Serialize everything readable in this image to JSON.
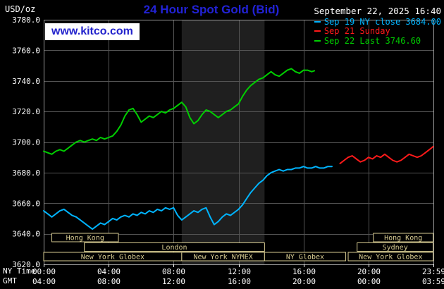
{
  "header": {
    "unit_label": "USD/oz",
    "title": "24 Hour Spot Gold (Bid)",
    "datetime": "September 22, 2025 16:40",
    "watermark": "www.kitco.com",
    "legend": [
      {
        "label": "Sep 19 NY close 3684.00",
        "color": "#00b4ff"
      },
      {
        "label": "Sep 21 Sunday",
        "color": "#ff1a1a"
      },
      {
        "label": "Sep 22 Last 3746.60",
        "color": "#00cf00"
      }
    ]
  },
  "axes": {
    "ny_time_label": "NY Time",
    "gmt_label": "GMT"
  },
  "colors": {
    "background": "#000000",
    "grid": "#555555",
    "frame": "#9a9a9a",
    "band": "#1f1f1f",
    "tick_text": "#ffffff",
    "session": "#d8cc92",
    "session_fill": "#000000",
    "title_blue": "#2222d6",
    "kitco_blue": "#2222cc"
  },
  "sessions": {
    "rows": [
      {
        "boxes": [
          {
            "label": "Hong Kong",
            "start": 0.5,
            "end": 4.6
          },
          {
            "label": "Hong Kong",
            "start": 20.3,
            "end": 23.983
          }
        ]
      },
      {
        "boxes": [
          {
            "label": "London",
            "start": 2.5,
            "end": 13.6
          },
          {
            "label": "Sydney",
            "start": 19.3,
            "end": 23.983
          }
        ]
      },
      {
        "boxes": [
          {
            "label": "New York Globex",
            "start": 0,
            "end": 8.5
          },
          {
            "label": "New York NYMEX",
            "start": 8.5,
            "end": 13.6
          },
          {
            "label": "NY Globex",
            "start": 13.6,
            "end": 18.6
          },
          {
            "label": "New York Globex",
            "start": 18.75,
            "end": 23.983
          }
        ]
      }
    ]
  },
  "chart_data": {
    "type": "line",
    "title": "24 Hour Spot Gold (Bid)",
    "xlabel": "NY Time (hours 00:00-23:59)",
    "ylabel": "USD/oz",
    "xlim": [
      0,
      24
    ],
    "ylim": [
      3620,
      3780
    ],
    "grid": true,
    "legend_position": "top-right",
    "session_highlight": {
      "name": "New York NYMEX",
      "start": 8.5,
      "end": 13.6
    },
    "x_ticks": [
      {
        "h": 0,
        "ny": "00:00",
        "gmt": "04:00"
      },
      {
        "h": 4,
        "ny": "04:00",
        "gmt": "08:00"
      },
      {
        "h": 8,
        "ny": "08:00",
        "gmt": "12:00"
      },
      {
        "h": 12,
        "ny": "12:00",
        "gmt": "16:00"
      },
      {
        "h": 16,
        "ny": "16:00",
        "gmt": "20:00"
      },
      {
        "h": 20,
        "ny": "20:00",
        "gmt": "00:00"
      },
      {
        "h": 23.983,
        "ny": "23:59",
        "gmt": "03:59"
      }
    ],
    "y_ticks": [
      {
        "v": 3780,
        "label": "3780.0"
      },
      {
        "v": 3760,
        "label": "3760.0"
      },
      {
        "v": 3740,
        "label": "3740.0"
      },
      {
        "v": 3720,
        "label": "3720.0"
      },
      {
        "v": 3700,
        "label": "3700.0"
      },
      {
        "v": 3680,
        "label": "3680.0"
      },
      {
        "v": 3660,
        "label": "3660.0"
      },
      {
        "v": 3640,
        "label": "3640.0"
      },
      {
        "v": 3620,
        "label": "3620.0"
      }
    ],
    "series": [
      {
        "id": "sep19",
        "name": "Sep 19 NY close",
        "color": "#00b4ff",
        "close": 3684.0,
        "points": [
          [
            0,
            3655
          ],
          [
            0.25,
            3653
          ],
          [
            0.5,
            3651
          ],
          [
            0.75,
            3653
          ],
          [
            1,
            3655
          ],
          [
            1.25,
            3656
          ],
          [
            1.5,
            3654
          ],
          [
            1.75,
            3652
          ],
          [
            2,
            3651
          ],
          [
            2.25,
            3649
          ],
          [
            2.5,
            3647
          ],
          [
            2.75,
            3645
          ],
          [
            3,
            3643
          ],
          [
            3.25,
            3645
          ],
          [
            3.5,
            3647
          ],
          [
            3.75,
            3646
          ],
          [
            4,
            3648
          ],
          [
            4.25,
            3650
          ],
          [
            4.5,
            3649
          ],
          [
            4.75,
            3651
          ],
          [
            5,
            3652
          ],
          [
            5.25,
            3651
          ],
          [
            5.5,
            3653
          ],
          [
            5.75,
            3652
          ],
          [
            6,
            3654
          ],
          [
            6.25,
            3653
          ],
          [
            6.5,
            3655
          ],
          [
            6.75,
            3654
          ],
          [
            7,
            3656
          ],
          [
            7.25,
            3655
          ],
          [
            7.5,
            3657
          ],
          [
            7.75,
            3656
          ],
          [
            8,
            3657
          ],
          [
            8.25,
            3652
          ],
          [
            8.5,
            3649
          ],
          [
            8.75,
            3651
          ],
          [
            9,
            3653
          ],
          [
            9.25,
            3655
          ],
          [
            9.5,
            3654
          ],
          [
            9.75,
            3656
          ],
          [
            10,
            3657
          ],
          [
            10.25,
            3651
          ],
          [
            10.5,
            3646
          ],
          [
            10.75,
            3648
          ],
          [
            11,
            3651
          ],
          [
            11.25,
            3653
          ],
          [
            11.5,
            3652
          ],
          [
            11.75,
            3654
          ],
          [
            12,
            3656
          ],
          [
            12.25,
            3659
          ],
          [
            12.5,
            3663
          ],
          [
            12.75,
            3667
          ],
          [
            13,
            3670
          ],
          [
            13.25,
            3673
          ],
          [
            13.5,
            3675
          ],
          [
            13.75,
            3678
          ],
          [
            14,
            3680
          ],
          [
            14.25,
            3681
          ],
          [
            14.5,
            3682
          ],
          [
            14.75,
            3681
          ],
          [
            15,
            3682
          ],
          [
            15.25,
            3682
          ],
          [
            15.5,
            3683
          ],
          [
            15.75,
            3683
          ],
          [
            16,
            3684
          ],
          [
            16.25,
            3683
          ],
          [
            16.5,
            3683
          ],
          [
            16.75,
            3684
          ],
          [
            17,
            3683
          ],
          [
            17.25,
            3683
          ],
          [
            17.5,
            3684
          ],
          [
            17.75,
            3684
          ]
        ]
      },
      {
        "id": "sep21",
        "name": "Sep 21 Sunday",
        "color": "#ff1a1a",
        "points": [
          [
            18.25,
            3686
          ],
          [
            18.5,
            3688
          ],
          [
            18.75,
            3690
          ],
          [
            19,
            3691
          ],
          [
            19.25,
            3689
          ],
          [
            19.5,
            3687
          ],
          [
            19.75,
            3688
          ],
          [
            20,
            3690
          ],
          [
            20.25,
            3689
          ],
          [
            20.5,
            3691
          ],
          [
            20.75,
            3690
          ],
          [
            21,
            3692
          ],
          [
            21.25,
            3690
          ],
          [
            21.5,
            3688
          ],
          [
            21.75,
            3687
          ],
          [
            22,
            3688
          ],
          [
            22.25,
            3690
          ],
          [
            22.5,
            3692
          ],
          [
            22.75,
            3691
          ],
          [
            23,
            3690
          ],
          [
            23.25,
            3691
          ],
          [
            23.5,
            3693
          ],
          [
            23.75,
            3695
          ],
          [
            23.983,
            3697
          ]
        ]
      },
      {
        "id": "sep22",
        "name": "Sep 22 Last",
        "color": "#00cf00",
        "last": 3746.6,
        "points": [
          [
            0,
            3694
          ],
          [
            0.25,
            3693
          ],
          [
            0.5,
            3692
          ],
          [
            0.75,
            3694
          ],
          [
            1,
            3695
          ],
          [
            1.25,
            3694
          ],
          [
            1.5,
            3696
          ],
          [
            1.75,
            3698
          ],
          [
            2,
            3700
          ],
          [
            2.25,
            3701
          ],
          [
            2.5,
            3700
          ],
          [
            2.75,
            3701
          ],
          [
            3,
            3702
          ],
          [
            3.25,
            3701
          ],
          [
            3.5,
            3703
          ],
          [
            3.75,
            3702
          ],
          [
            4,
            3703
          ],
          [
            4.25,
            3704
          ],
          [
            4.5,
            3707
          ],
          [
            4.75,
            3711
          ],
          [
            5,
            3717
          ],
          [
            5.25,
            3721
          ],
          [
            5.5,
            3722
          ],
          [
            5.75,
            3718
          ],
          [
            6,
            3713
          ],
          [
            6.25,
            3715
          ],
          [
            6.5,
            3717
          ],
          [
            6.75,
            3716
          ],
          [
            7,
            3718
          ],
          [
            7.25,
            3720
          ],
          [
            7.5,
            3719
          ],
          [
            7.75,
            3721
          ],
          [
            8,
            3722
          ],
          [
            8.25,
            3724
          ],
          [
            8.5,
            3726
          ],
          [
            8.75,
            3723
          ],
          [
            9,
            3716
          ],
          [
            9.25,
            3712
          ],
          [
            9.5,
            3714
          ],
          [
            9.75,
            3718
          ],
          [
            10,
            3721
          ],
          [
            10.25,
            3720
          ],
          [
            10.5,
            3718
          ],
          [
            10.75,
            3716
          ],
          [
            11,
            3718
          ],
          [
            11.25,
            3720
          ],
          [
            11.5,
            3721
          ],
          [
            11.75,
            3723
          ],
          [
            12,
            3725
          ],
          [
            12.25,
            3730
          ],
          [
            12.5,
            3734
          ],
          [
            12.75,
            3737
          ],
          [
            13,
            3739
          ],
          [
            13.25,
            3741
          ],
          [
            13.5,
            3742
          ],
          [
            13.75,
            3744
          ],
          [
            14,
            3746
          ],
          [
            14.25,
            3744
          ],
          [
            14.5,
            3743
          ],
          [
            14.75,
            3745
          ],
          [
            15,
            3747
          ],
          [
            15.25,
            3748
          ],
          [
            15.5,
            3746
          ],
          [
            15.75,
            3745
          ],
          [
            16,
            3747
          ],
          [
            16.25,
            3747
          ],
          [
            16.5,
            3746
          ],
          [
            16.67,
            3746.6
          ]
        ]
      }
    ]
  }
}
